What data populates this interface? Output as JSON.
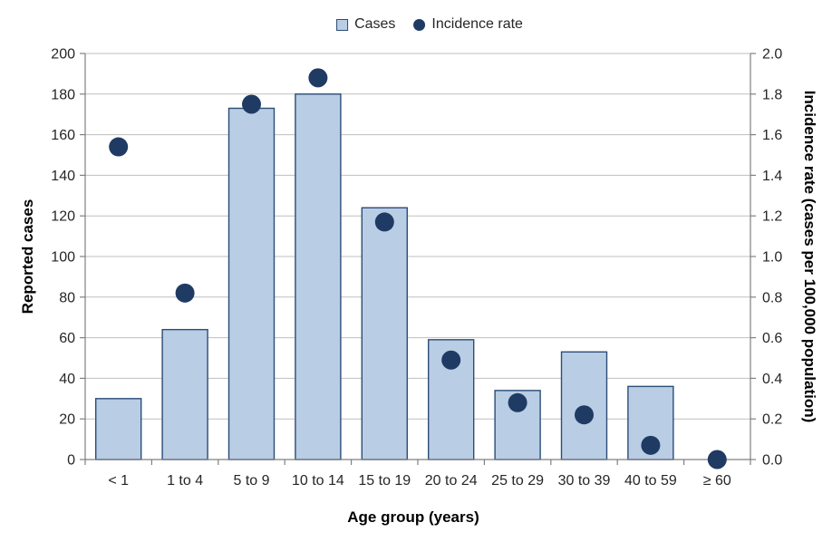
{
  "chart_data": {
    "type": "combo",
    "categories": [
      "< 1",
      "1 to 4",
      "5 to 9",
      "10 to 14",
      "15 to 19",
      "20 to 24",
      "25 to 29",
      "30 to 39",
      "40 to 59",
      "≥ 60"
    ],
    "series": [
      {
        "name": "Cases",
        "type": "bar",
        "axis": "left",
        "values": [
          30,
          64,
          173,
          180,
          124,
          59,
          34,
          53,
          36,
          0
        ]
      },
      {
        "name": "Incidence rate",
        "type": "scatter",
        "axis": "right",
        "values": [
          1.54,
          0.82,
          1.75,
          1.88,
          1.17,
          0.49,
          0.28,
          0.22,
          0.07,
          0.0
        ]
      }
    ],
    "title": "",
    "xlabel": "Age group (years)",
    "ylabel_left": "Reported cases",
    "ylabel_right": "Incidence rate (cases per 100,000 population)",
    "ylim_left": [
      0,
      200
    ],
    "ytick_step_left": 20,
    "ylim_right": [
      0.0,
      2.0
    ],
    "ytick_step_right": 0.2,
    "grid": true,
    "legend_position": "top-center",
    "colors": {
      "bar_fill": "#B9CDE5",
      "bar_border": "#2B4D77",
      "marker": "#1F3B64",
      "gridline": "#BFBFBF",
      "axis_line": "#808080",
      "text": "#262626"
    }
  }
}
